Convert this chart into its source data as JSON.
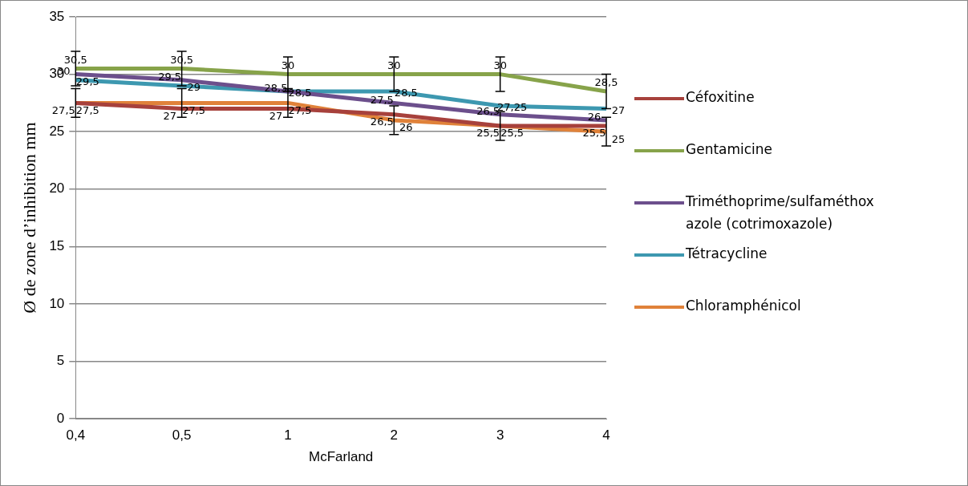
{
  "chart_data": {
    "type": "line",
    "xlabel": "McFarland",
    "ylabel": "Ø de zone d’inhibition mm",
    "categories": [
      "0,4",
      "0,5",
      "1",
      "2",
      "3",
      "4"
    ],
    "series": [
      {
        "name": "Céfoxitine",
        "color": "#a7413c",
        "values": [
          27.5,
          27,
          27,
          26.5,
          25.5,
          25.5
        ],
        "value_labels": [
          "27,5",
          "27",
          "27",
          "26,5",
          "25,5",
          "25,5"
        ]
      },
      {
        "name": "Gentamicine",
        "color": "#87a34a",
        "values": [
          30.5,
          30.5,
          30,
          30,
          30,
          28.5
        ],
        "value_labels": [
          "30,5",
          "30,5",
          "30",
          "30",
          "30",
          "28,5"
        ],
        "errors": [
          1.5,
          1.5,
          1.5,
          1.5,
          1.5,
          1.5
        ]
      },
      {
        "name": "Triméthoprime/sulfaméthoxazole (cotrimoxazole)",
        "color": "#6c4f8c",
        "values": [
          30,
          29.5,
          28.5,
          27.5,
          26.5,
          26
        ],
        "value_labels": [
          "30",
          "29,5",
          "28,5",
          "27,5",
          "26,5",
          "26"
        ]
      },
      {
        "name": "Tétracycline",
        "color": "#3d98b0",
        "values": [
          29.5,
          29,
          28.5,
          28.5,
          27.25,
          27
        ],
        "value_labels": [
          "29,5",
          "29",
          "28,5",
          "28,5",
          "27,25",
          "27"
        ]
      },
      {
        "name": "Chloramphénicol",
        "color": "#e0823a",
        "values": [
          27.5,
          27.5,
          27.5,
          26,
          25.5,
          25
        ],
        "value_labels": [
          "27,5",
          "27,5",
          "27,5",
          "26",
          "25,5",
          "25"
        ],
        "errors": [
          1.25,
          1.25,
          1.25,
          1.25,
          1.25,
          1.25
        ]
      }
    ],
    "ylim": [
      0,
      35
    ],
    "yticks": [
      0,
      5,
      10,
      15,
      20,
      25,
      30,
      35
    ],
    "grid": "y",
    "legend": "right",
    "marker": "none",
    "line_style": "solid"
  }
}
